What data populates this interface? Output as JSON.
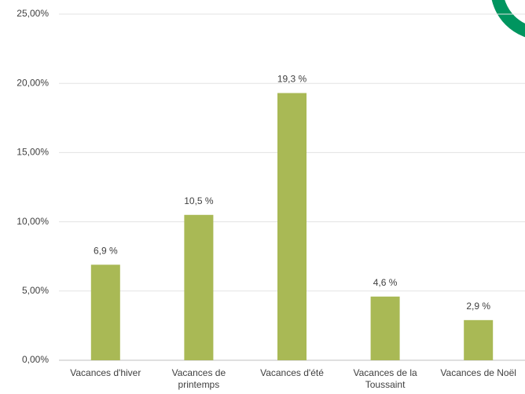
{
  "chart_data": {
    "type": "bar",
    "categories": [
      "Vacances d'hiver",
      "Vacances de printemps",
      "Vacances d'été",
      "Vacances de la Toussaint",
      "Vacances de Noël"
    ],
    "values": [
      6.9,
      10.5,
      19.3,
      4.6,
      2.9
    ],
    "value_labels": [
      "6,9 %",
      "10,5 %",
      "19,3 %",
      "4,6 %",
      "2,9 %"
    ],
    "color": "#a9b955",
    "ylim": [
      0,
      25
    ],
    "yticks": [
      {
        "value": 0,
        "label": "0,00%"
      },
      {
        "value": 5,
        "label": "5,00%"
      },
      {
        "value": 10,
        "label": "10,00%"
      },
      {
        "value": 15,
        "label": "15,00%"
      },
      {
        "value": 20,
        "label": "20,00%"
      },
      {
        "value": 25,
        "label": "25,00%"
      }
    ],
    "grid": true
  }
}
